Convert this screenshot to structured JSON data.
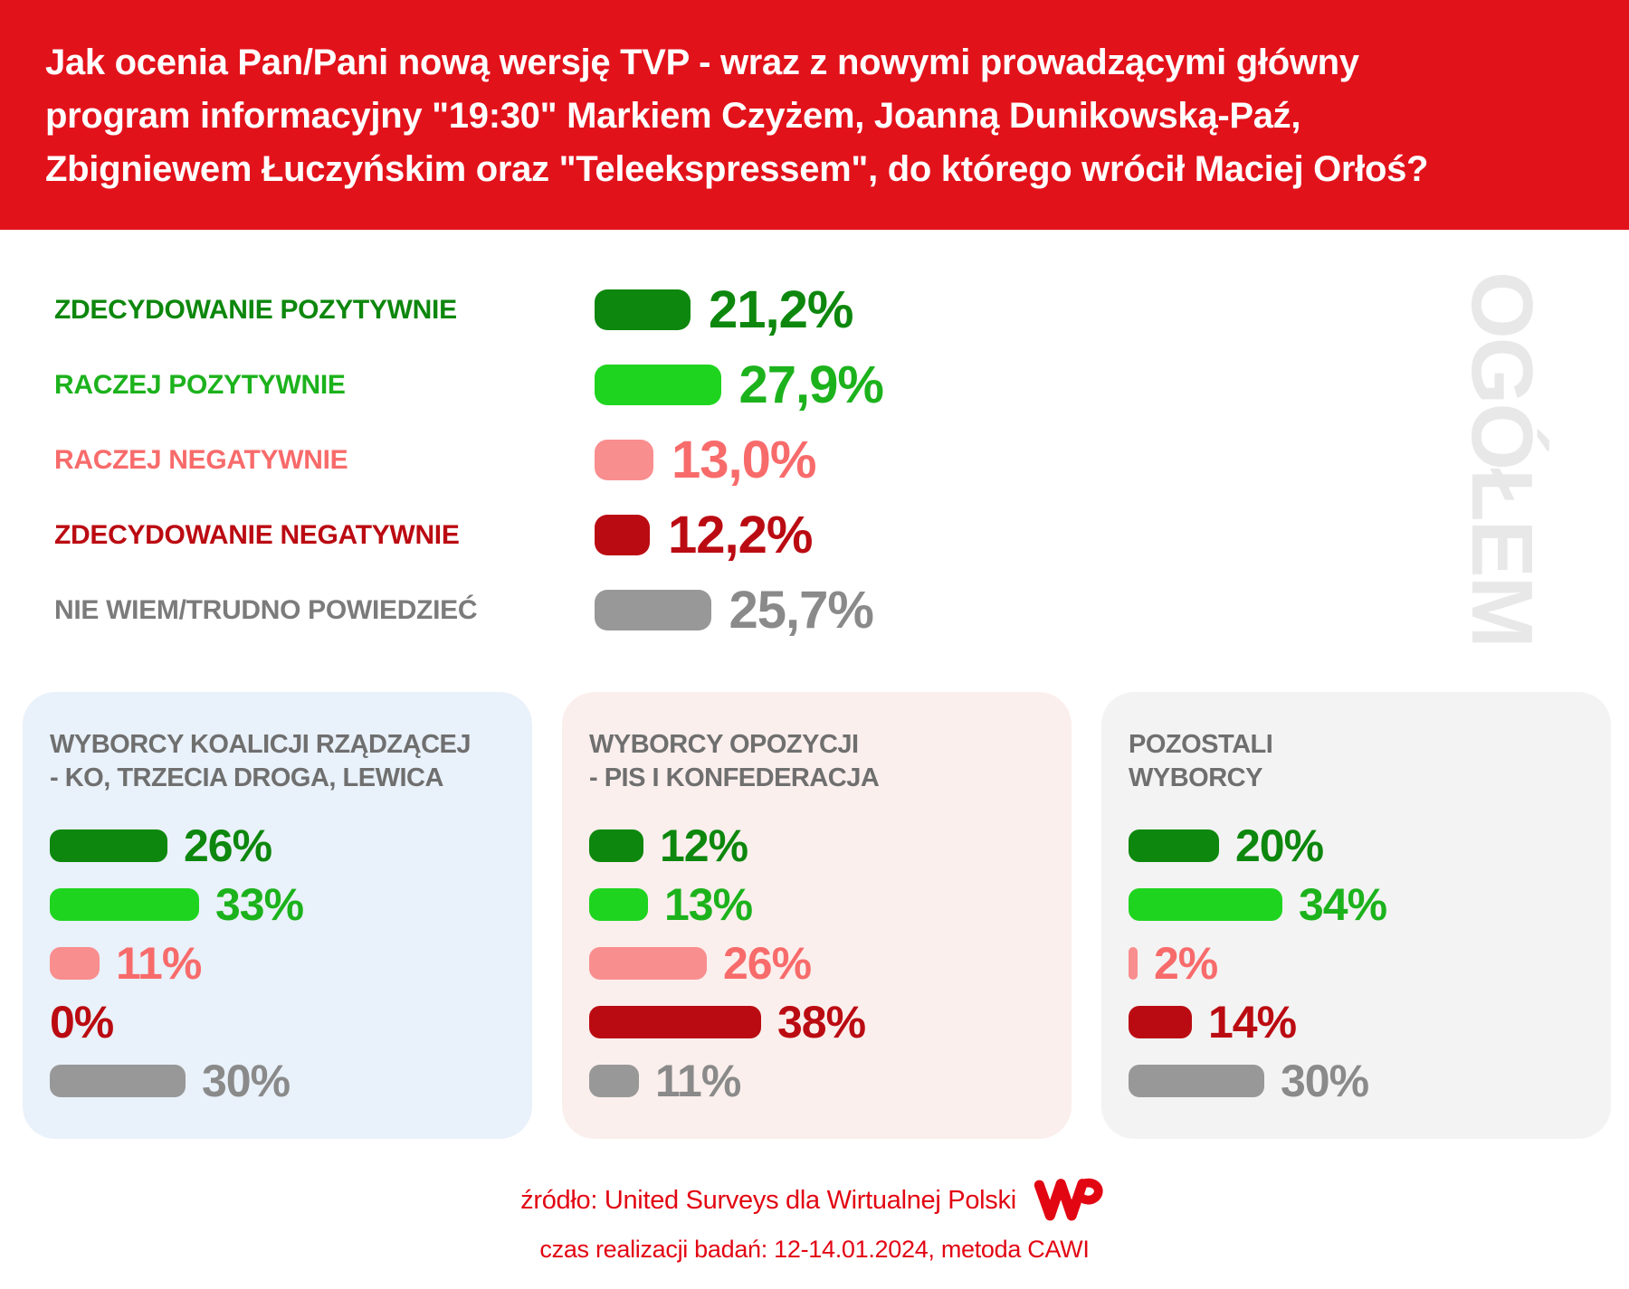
{
  "header": {
    "question_lines": [
      "Jak ocenia Pan/Pani nową wersję TVP - wraz z nowymi prowadzącymi główny",
      "program informacyjny \"19:30\" Markiem Czyżem, Joanną Dunikowską-Paź,",
      "Zbigniewem Łuczyńskim oraz \"Teleekspressem\", do którego wrócił Maciej Orłoś?"
    ]
  },
  "watermark": {
    "text": "OGÓŁEM"
  },
  "palette": {
    "header_red": "#E2121B",
    "footer_red": "#E20613",
    "dark_green": "#0D870D",
    "bright_green": "#1FD41F",
    "green_text": "#1CB21C",
    "salmon": "#F98E8E",
    "salmon_text": "#F86B6B",
    "dark_red": "#BB0B12",
    "gray_bar": "#989898",
    "gray_text": "#8A8A8A",
    "label_gray": "#7B7B7B",
    "title_gray": "#6F6F6F",
    "watermark_gray": "#E8E8E8"
  },
  "overall": {
    "rows": [
      {
        "label": "ZDECYDOWANIE POZYTYWNIE",
        "value": 21.2,
        "display": "21,2%",
        "bar_color": "dark_green",
        "label_color": "dark_green",
        "value_color": "dark_green"
      },
      {
        "label": "RACZEJ POZYTYWNIE",
        "value": 27.9,
        "display": "27,9%",
        "bar_color": "bright_green",
        "label_color": "green_text",
        "value_color": "green_text"
      },
      {
        "label": "RACZEJ NEGATYWNIE",
        "value": 13.0,
        "display": "13,0%",
        "bar_color": "salmon",
        "label_color": "salmon_text",
        "value_color": "salmon_text"
      },
      {
        "label": "ZDECYDOWANIE NEGATYWNIE",
        "value": 12.2,
        "display": "12,2%",
        "bar_color": "dark_red",
        "label_color": "dark_red",
        "value_color": "dark_red"
      },
      {
        "label": "NIE WIEM/TRUDNO POWIEDZIEĆ",
        "value": 25.7,
        "display": "25,7%",
        "bar_color": "gray_bar",
        "label_color": "label_gray",
        "value_color": "gray_text"
      }
    ]
  },
  "panels": [
    {
      "title_line1": "WYBORCY KOALICJI RZĄDZĄCEJ",
      "title_line2": "- KO, TRZECIA DROGA, LEWICA",
      "bg": "#E9F1FA",
      "rows": [
        {
          "value": 26,
          "display": "26%",
          "bar_color": "dark_green",
          "value_color": "dark_green"
        },
        {
          "value": 33,
          "display": "33%",
          "bar_color": "bright_green",
          "value_color": "green_text"
        },
        {
          "value": 11,
          "display": "11%",
          "bar_color": "salmon",
          "value_color": "salmon_text"
        },
        {
          "value": 0,
          "display": "0%",
          "bar_color": "dark_red",
          "value_color": "dark_red"
        },
        {
          "value": 30,
          "display": "30%",
          "bar_color": "gray_bar",
          "value_color": "gray_text"
        }
      ]
    },
    {
      "title_line1": "WYBORCY OPOZYCJI",
      "title_line2": "- PIS I KONFEDERACJA",
      "bg": "#FBEFED",
      "rows": [
        {
          "value": 12,
          "display": "12%",
          "bar_color": "dark_green",
          "value_color": "dark_green"
        },
        {
          "value": 13,
          "display": "13%",
          "bar_color": "bright_green",
          "value_color": "green_text"
        },
        {
          "value": 26,
          "display": "26%",
          "bar_color": "salmon",
          "value_color": "salmon_text"
        },
        {
          "value": 38,
          "display": "38%",
          "bar_color": "dark_red",
          "value_color": "dark_red"
        },
        {
          "value": 11,
          "display": "11%",
          "bar_color": "gray_bar",
          "value_color": "gray_text"
        }
      ]
    },
    {
      "title_line1": "POZOSTALI",
      "title_line2": "WYBORCY",
      "bg": "#F3F3F3",
      "rows": [
        {
          "value": 20,
          "display": "20%",
          "bar_color": "dark_green",
          "value_color": "dark_green"
        },
        {
          "value": 34,
          "display": "34%",
          "bar_color": "bright_green",
          "value_color": "green_text"
        },
        {
          "value": 2,
          "display": "2%",
          "bar_color": "salmon",
          "value_color": "salmon_text"
        },
        {
          "value": 14,
          "display": "14%",
          "bar_color": "dark_red",
          "value_color": "dark_red"
        },
        {
          "value": 30,
          "display": "30%",
          "bar_color": "gray_bar",
          "value_color": "gray_text"
        }
      ]
    }
  ],
  "footer": {
    "source": "źródło: United Surveys dla Wirtualnej Polski",
    "details": "czas realizacji badań: 12-14.01.2024, metoda CAWI",
    "logo": "WP"
  },
  "chart_data": {
    "type": "bar",
    "title": "Jak ocenia Pan/Pani nową wersję TVP - wraz z nowymi prowadzącymi główny program informacyjny \"19:30\" Markiem Czyżem, Joanną Dunikowską-Paź, Zbigniewem Łuczyńskim oraz \"Teleekspressem\", do którego wrócił Maciej Orłoś?",
    "orientation": "horizontal",
    "unit": "%",
    "categories": [
      "ZDECYDOWANIE POZYTYWNIE",
      "RACZEJ POZYTYWNIE",
      "RACZEJ NEGATYWNIE",
      "ZDECYDOWANIE NEGATYWNIE",
      "NIE WIEM/TRUDNO POWIEDZIEĆ"
    ],
    "series": [
      {
        "name": "OGÓŁEM",
        "values": [
          21.2,
          27.9,
          13.0,
          12.2,
          25.7
        ]
      },
      {
        "name": "WYBORCY KOALICJI RZĄDZĄCEJ - KO, TRZECIA DROGA, LEWICA",
        "values": [
          26,
          33,
          11,
          0,
          30
        ]
      },
      {
        "name": "WYBORCY OPOZYCJI - PIS I KONFEDERACJA",
        "values": [
          12,
          13,
          26,
          38,
          11
        ]
      },
      {
        "name": "POZOSTALI WYBORCY",
        "values": [
          20,
          34,
          2,
          14,
          30
        ]
      }
    ],
    "source": "United Surveys dla Wirtualnej Polski, 12-14.01.2024, metoda CAWI"
  }
}
